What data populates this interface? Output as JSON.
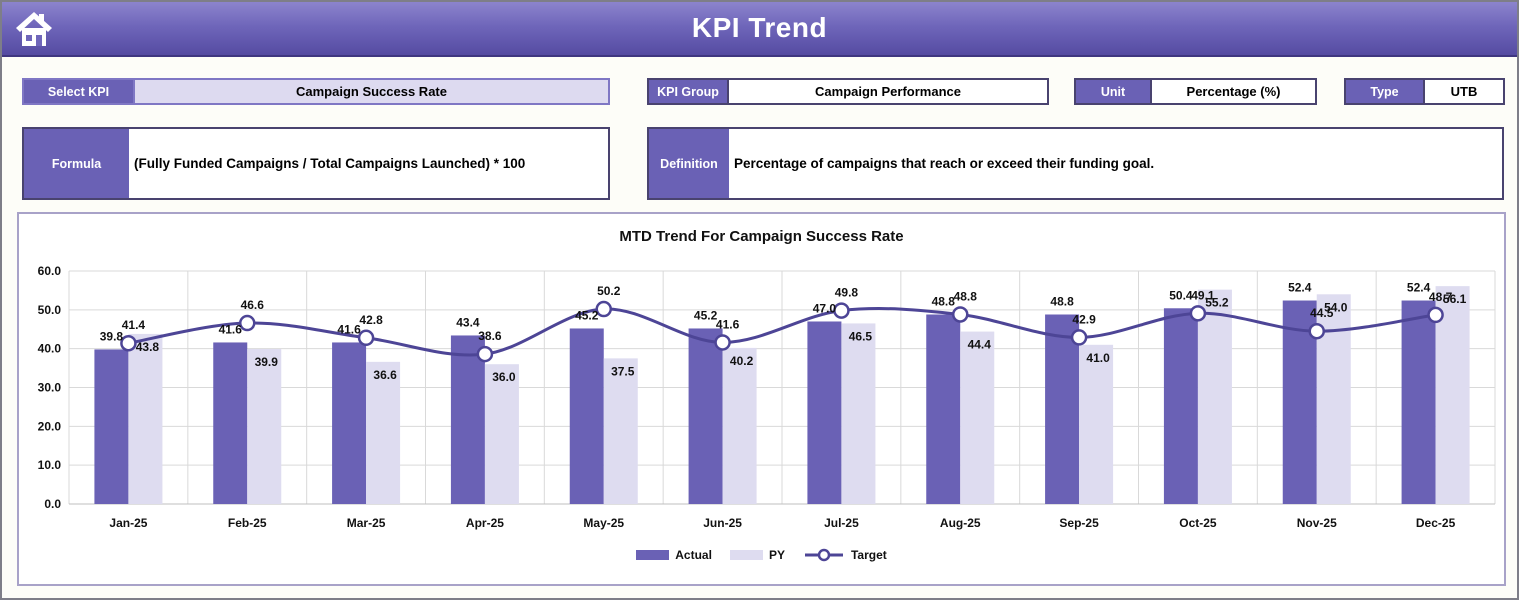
{
  "header": {
    "title": "KPI Trend"
  },
  "fields": {
    "select_kpi": {
      "label": "Select KPI",
      "value": "Campaign Success Rate"
    },
    "kpi_group": {
      "label": "KPI Group",
      "value": "Campaign Performance"
    },
    "unit": {
      "label": "Unit",
      "value": "Percentage (%)"
    },
    "type": {
      "label": "Type",
      "value": "UTB"
    },
    "formula": {
      "label": "Formula",
      "value": "(Fully Funded Campaigns / Total Campaigns Launched) * 100"
    },
    "definition": {
      "label": "Definition",
      "value": "Percentage of campaigns that reach or exceed their funding goal."
    }
  },
  "chart_data": {
    "type": "bar+line",
    "title": "MTD Trend For Campaign Success Rate",
    "categories": [
      "Jan-25",
      "Feb-25",
      "Mar-25",
      "Apr-25",
      "May-25",
      "Jun-25",
      "Jul-25",
      "Aug-25",
      "Sep-25",
      "Oct-25",
      "Nov-25",
      "Dec-25"
    ],
    "series": [
      {
        "name": "Actual",
        "type": "bar",
        "color": "#6a61b5",
        "values": [
          39.8,
          41.6,
          41.6,
          43.4,
          45.2,
          45.2,
          47.0,
          48.8,
          48.8,
          50.4,
          52.4,
          52.4
        ]
      },
      {
        "name": "PY",
        "type": "bar",
        "color": "#dedcf0",
        "values": [
          43.8,
          39.9,
          36.6,
          36.0,
          37.5,
          40.2,
          46.5,
          44.4,
          41.0,
          55.2,
          54.0,
          56.1
        ]
      },
      {
        "name": "Target",
        "type": "line",
        "color": "#4d4596",
        "values": [
          41.4,
          46.6,
          42.8,
          38.6,
          50.2,
          41.6,
          49.8,
          48.8,
          42.9,
          49.1,
          44.5,
          48.7
        ]
      }
    ],
    "ylim": [
      0,
      60
    ],
    "ytick_step": 10,
    "ytick_format_decimals": 1,
    "grid": true,
    "legend_position": "bottom"
  },
  "colors": {
    "header_top": "#8c84cd",
    "header_bottom": "#554ba2",
    "label_purple": "#6a61b5",
    "select_value_bg": "#dddaf0",
    "gridline": "#d9d9d9",
    "axis_text": "#111111",
    "chart_border": "#a8a2c8"
  }
}
